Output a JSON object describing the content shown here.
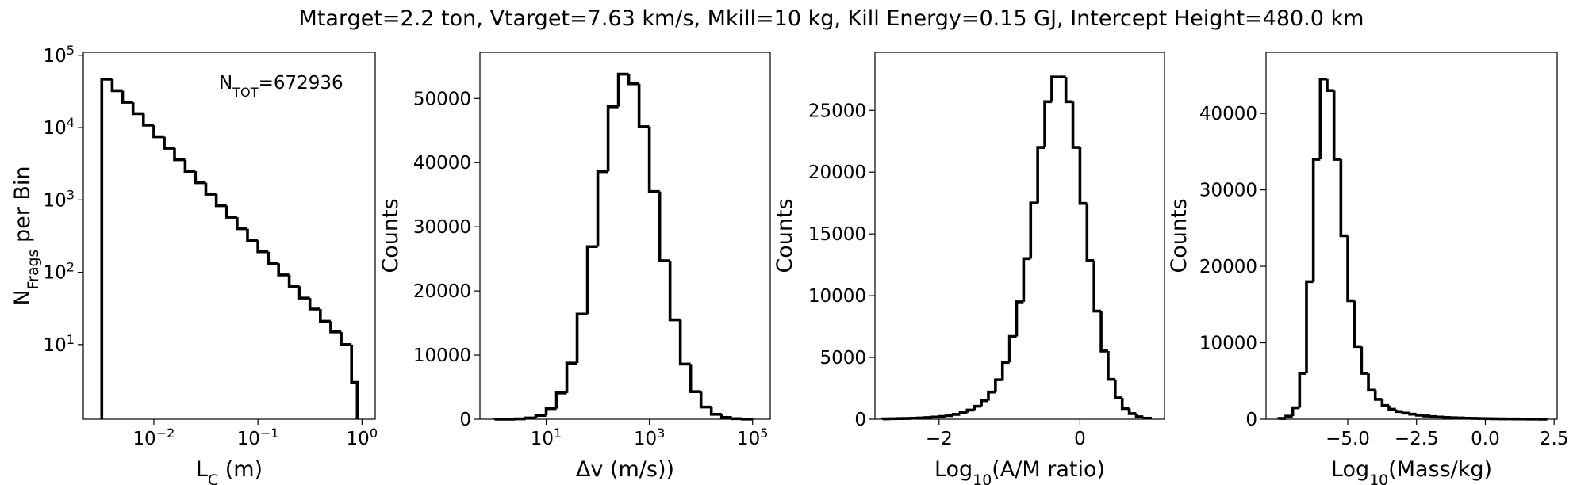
{
  "title": "Mtarget=2.2 ton, Vtarget=7.63 km/s, Mkill=10 kg, Kill Energy=0.15 GJ, Intercept Height=480.0 km",
  "chart_data": [
    {
      "type": "histogram",
      "color": "#000000",
      "xscale": "log",
      "yscale": "log",
      "xlabel": {
        "text": "L",
        "sub": "C",
        "rest": " (m)"
      },
      "ylabel": {
        "text": "N",
        "sub": "Frags",
        "rest": " per Bin"
      },
      "annotation": {
        "text": "N",
        "sub": "TOT",
        "rest": "=672936"
      },
      "xlim": [
        0.0021,
        1.34
      ],
      "ylim": [
        0.93,
        110000
      ],
      "xticks": [
        {
          "value": 0.01,
          "label": "10",
          "exponent": "−2"
        },
        {
          "value": 0.1,
          "label": "10",
          "exponent": "−1"
        },
        {
          "value": 1,
          "label": "10",
          "exponent": "0"
        }
      ],
      "yticks": [
        {
          "value": 10,
          "label": "10",
          "exponent": "1"
        },
        {
          "value": 100,
          "label": "10",
          "exponent": "2"
        },
        {
          "value": 1000,
          "label": "10",
          "exponent": "3"
        },
        {
          "value": 10000,
          "label": "10",
          "exponent": "4"
        },
        {
          "value": 100000,
          "label": "10",
          "exponent": "5"
        }
      ],
      "bins": [
        0.00316,
        0.00398,
        0.00501,
        0.00631,
        0.00794,
        0.01,
        0.0126,
        0.0158,
        0.02,
        0.0251,
        0.0316,
        0.0398,
        0.0501,
        0.0631,
        0.0794,
        0.1,
        0.126,
        0.158,
        0.2,
        0.251,
        0.316,
        0.398,
        0.501,
        0.631,
        0.794,
        0.9
      ],
      "counts": [
        46700,
        32400,
        22400,
        15600,
        10800,
        7480,
        5190,
        3600,
        2490,
        1730,
        1200,
        832,
        577,
        400,
        277,
        192,
        133,
        92,
        64,
        44,
        31,
        21,
        15,
        10,
        3
      ]
    },
    {
      "type": "histogram",
      "color": "#000000",
      "xscale": "log",
      "yscale": "linear",
      "xlabel": "Δv (m/s))",
      "ylabel": "Counts",
      "xlim": [
        0.52,
        220000
      ],
      "ylim": [
        0,
        57200
      ],
      "xticks": [
        {
          "value": 10,
          "label": "10",
          "exponent": "1"
        },
        {
          "value": 1000,
          "label": "10",
          "exponent": "3"
        },
        {
          "value": 100000,
          "label": "10",
          "exponent": "5"
        }
      ],
      "yticks": [
        0,
        10000,
        20000,
        30000,
        40000,
        50000
      ],
      "bins": [
        1,
        1.585,
        2.512,
        3.981,
        6.31,
        10,
        15.85,
        25.12,
        39.81,
        63.1,
        100,
        158.5,
        251.2,
        398.1,
        631,
        1000,
        1585,
        2512,
        3981,
        6310,
        10000,
        15850,
        25120,
        39810,
        63100,
        100000
      ],
      "counts": [
        3,
        12,
        52,
        188,
        600,
        1660,
        4100,
        8750,
        16400,
        26900,
        38600,
        48700,
        53800,
        52300,
        45600,
        35500,
        24700,
        15500,
        8600,
        4300,
        1900,
        770,
        275,
        88,
        25
      ]
    },
    {
      "type": "histogram",
      "color": "#000000",
      "xscale": "linear",
      "yscale": "linear",
      "xlabel": {
        "text": "Log",
        "sub": "10",
        "rest": "(A/M ratio)"
      },
      "ylabel": "Counts",
      "xlim": [
        -2.91,
        1.2
      ],
      "ylim": [
        0,
        29700
      ],
      "xticks": [
        {
          "value": -2,
          "label": "−2"
        },
        0
      ],
      "yticks": [
        0,
        5000,
        10000,
        15000,
        20000,
        25000
      ],
      "bins": [
        -2.8,
        -2.7,
        -2.6,
        -2.5,
        -2.4,
        -2.3,
        -2.2,
        -2.1,
        -2.0,
        -1.9,
        -1.8,
        -1.7,
        -1.6,
        -1.5,
        -1.4,
        -1.3,
        -1.2,
        -1.1,
        -1.0,
        -0.9,
        -0.8,
        -0.7,
        -0.6,
        -0.5,
        -0.4,
        -0.3,
        -0.2,
        -0.1,
        0.0,
        0.1,
        0.2,
        0.3,
        0.4,
        0.5,
        0.6,
        0.7,
        0.8,
        0.9,
        1.0
      ],
      "counts": [
        30,
        40,
        50,
        60,
        80,
        100,
        130,
        170,
        220,
        290,
        390,
        530,
        740,
        1050,
        1500,
        2200,
        3200,
        4600,
        6700,
        9500,
        13000,
        17500,
        22000,
        25700,
        27700,
        27700,
        25700,
        22000,
        17470,
        12840,
        8750,
        5520,
        3230,
        1740,
        870,
        450,
        200,
        80
      ]
    },
    {
      "type": "histogram",
      "color": "#000000",
      "xscale": "linear",
      "yscale": "linear",
      "xlabel": {
        "text": "Log",
        "sub": "10",
        "rest": "(Mass/kg)"
      },
      "ylabel": "Counts",
      "xlim": [
        -7.97,
        2.61
      ],
      "ylim": [
        0,
        48000
      ],
      "xticks": [
        {
          "value": -5,
          "label": "−5.0"
        },
        {
          "value": -2.5,
          "label": "−2.5"
        },
        {
          "value": 0,
          "label": "0.0"
        },
        2.5
      ],
      "yticks": [
        0,
        10000,
        20000,
        30000,
        40000
      ],
      "bins": [
        -7.5,
        -7.25,
        -7.0,
        -6.75,
        -6.5,
        -6.25,
        -6.0,
        -5.75,
        -5.5,
        -5.25,
        -5.0,
        -4.75,
        -4.5,
        -4.25,
        -4.0,
        -3.75,
        -3.5,
        -3.25,
        -3.0,
        -2.75,
        -2.5,
        -2.25,
        -2.0,
        -1.75,
        -1.5,
        -1.25,
        -1.0,
        -0.75,
        -0.5,
        -0.25,
        0.0,
        0.25,
        0.5,
        0.75,
        1.0,
        1.25,
        1.5,
        1.75,
        2.0,
        2.25
      ],
      "counts": [
        100,
        400,
        1500,
        6000,
        18000,
        34000,
        44500,
        43000,
        34000,
        24000,
        15500,
        9500,
        6000,
        3800,
        2600,
        1800,
        1300,
        1000,
        800,
        650,
        520,
        420,
        340,
        280,
        230,
        190,
        160,
        130,
        110,
        90,
        75,
        60,
        50,
        40,
        30,
        25,
        20,
        15,
        10
      ]
    }
  ]
}
